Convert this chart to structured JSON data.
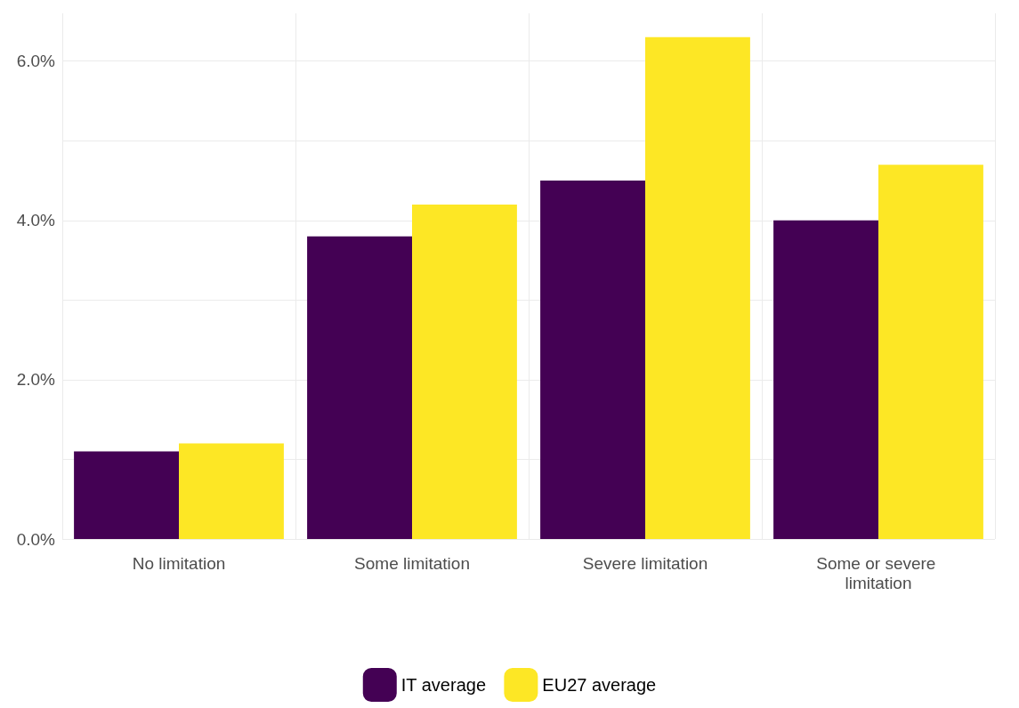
{
  "chart_data": {
    "type": "bar",
    "categories": [
      "No limitation",
      "Some limitation",
      "Severe limitation",
      "Some or severe limitation"
    ],
    "series": [
      {
        "name": "IT average",
        "color": "#440154",
        "values": [
          1.1,
          3.8,
          4.5,
          4.0
        ]
      },
      {
        "name": "EU27 average",
        "color": "#fde725",
        "values": [
          1.2,
          4.2,
          6.3,
          4.7
        ]
      }
    ],
    "ylim": [
      0,
      6.6
    ],
    "yticks": [
      {
        "value": 0,
        "label": "0.0%"
      },
      {
        "value": 1,
        "label": null
      },
      {
        "value": 2,
        "label": "2.0%"
      },
      {
        "value": 3,
        "label": null
      },
      {
        "value": 4,
        "label": "4.0%"
      },
      {
        "value": 5,
        "label": null
      },
      {
        "value": 6,
        "label": "6.0%"
      }
    ],
    "grid": true,
    "legend": "bottom"
  }
}
